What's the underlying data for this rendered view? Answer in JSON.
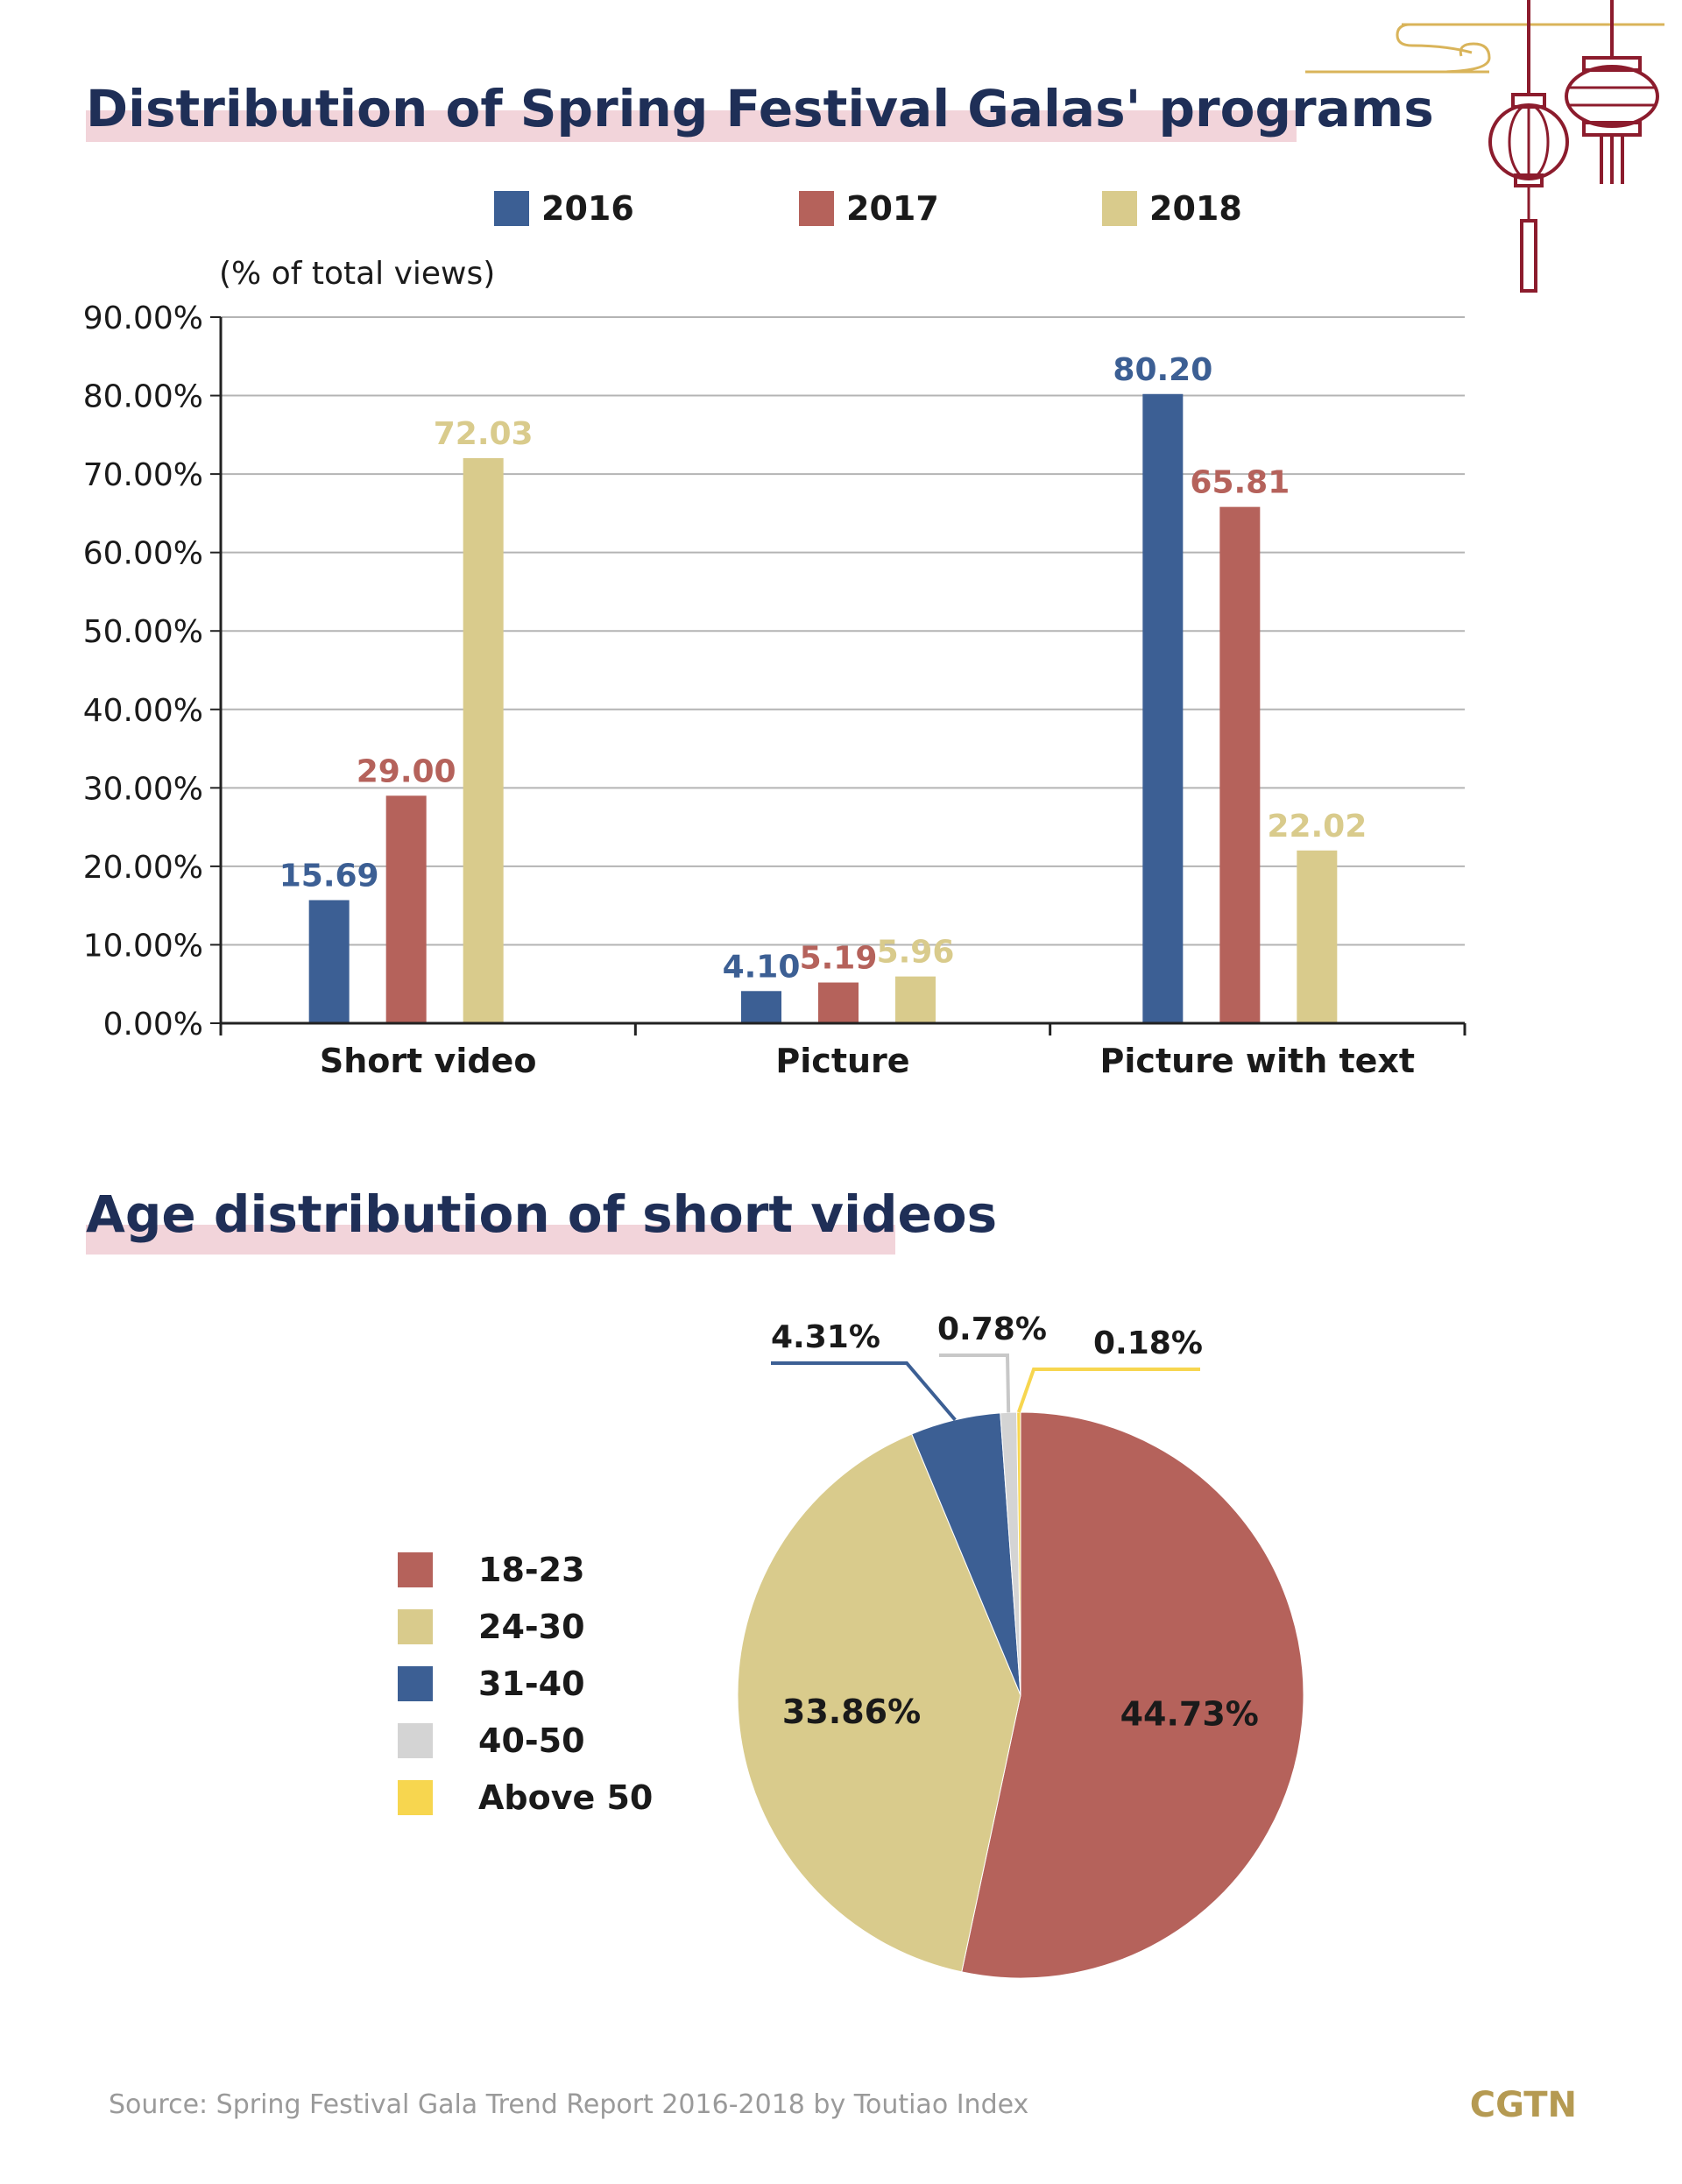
{
  "colors": {
    "blue": "#3c5f94",
    "red": "#b5625b",
    "tan": "#d9cb8c",
    "gray": "#d4d4d4",
    "yellow": "#f7d64f",
    "title": "#1f2f57",
    "title_highlight": "#f2d4da",
    "grid": "#b4b4b4",
    "axis": "#222222",
    "source": "#9a9a9a",
    "brand": "#b59a52",
    "ornament_gold": "#d9b45a",
    "ornament_red": "#8c1c2d"
  },
  "icons": [
    "lantern-ornament-icon",
    "cloud-swirl-icon"
  ],
  "bar_section": {
    "title": "Distribution of Spring Festival Galas' programs"
  },
  "pie_section": {
    "title": "Age distribution of short videos"
  },
  "footer": {
    "source": "Source: Spring Festival Gala Trend Report 2016-2018 by Toutiao Index",
    "brand": "CGTN"
  },
  "chart_data": [
    {
      "type": "bar",
      "title": "Distribution of Spring Festival Galas' programs",
      "ylabel": "(% of total views)",
      "ylim": [
        0,
        90
      ],
      "yticks": [
        "0.00%",
        "10.00%",
        "20.00%",
        "30.00%",
        "40.00%",
        "50.00%",
        "60.00%",
        "70.00%",
        "80.00%",
        "90.00%"
      ],
      "grid": true,
      "legend": "top",
      "categories": [
        "Short video",
        "Picture",
        "Picture with text"
      ],
      "series": [
        {
          "name": "2016",
          "values": [
            15.69,
            4.1,
            80.2
          ],
          "labels": [
            "15.69",
            "4.10",
            "80.20"
          ]
        },
        {
          "name": "2017",
          "values": [
            29.0,
            5.19,
            65.81
          ],
          "labels": [
            "29.00",
            "5.19",
            "65.81"
          ]
        },
        {
          "name": "2018",
          "values": [
            72.03,
            5.96,
            22.02
          ],
          "labels": [
            "72.03",
            "5.96",
            "22.02"
          ]
        }
      ]
    },
    {
      "type": "pie",
      "title": "Age distribution of short videos",
      "legend": "left",
      "slices": [
        {
          "name": "18-23",
          "value": 44.73,
          "label": "44.73%"
        },
        {
          "name": "24-30",
          "value": 33.86,
          "label": "33.86%"
        },
        {
          "name": "31-40",
          "value": 4.31,
          "label": "4.31%"
        },
        {
          "name": "40-50",
          "value": 0.78,
          "label": "0.78%"
        },
        {
          "name": "Above 50",
          "value": 0.18,
          "label": "0.18%"
        }
      ]
    }
  ]
}
